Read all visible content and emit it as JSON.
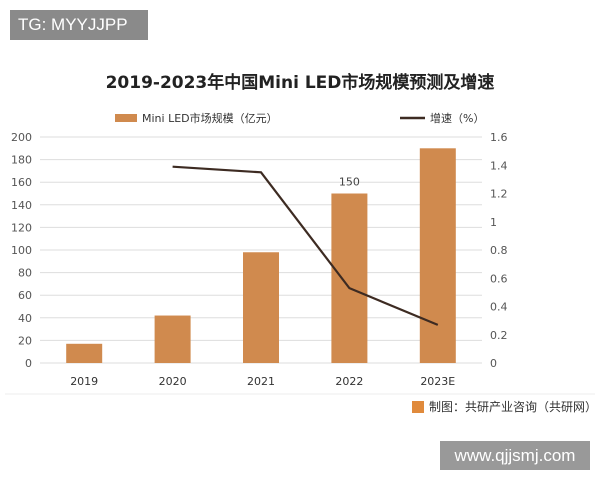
{
  "badge": "TG: MYYJJPP",
  "site": "www.qjjsmj.com",
  "source": "制图：共研产业咨询（共研网）",
  "chart_data": {
    "type": "bar+line",
    "title": "2019-2023年中国Mini LED市场规模预测及增速",
    "categories": [
      "2019",
      "2020",
      "2021",
      "2022",
      "2023E"
    ],
    "series": [
      {
        "name": "Mini LED市场规模（亿元）",
        "type": "bar",
        "axis": "left",
        "color": "#d08a4e",
        "values": [
          17,
          42,
          98,
          150,
          190
        ]
      },
      {
        "name": "增速（%）",
        "type": "line",
        "axis": "right",
        "color": "#3d2b22",
        "values": [
          null,
          1.39,
          1.35,
          0.53,
          0.27
        ]
      }
    ],
    "data_labels": [
      {
        "category": "2022",
        "text": "150"
      }
    ],
    "left_axis": {
      "ylim": [
        0,
        200
      ],
      "ticks": [
        "0",
        "20",
        "40",
        "60",
        "80",
        "100",
        "120",
        "140",
        "160",
        "180",
        "200"
      ]
    },
    "right_axis": {
      "ylim": [
        0,
        1.6
      ],
      "ticks": [
        "0",
        "0.2",
        "0.4",
        "0.6",
        "0.8",
        "1",
        "1.2",
        "1.4",
        "1.6"
      ]
    },
    "grid": true,
    "legend": "top"
  }
}
